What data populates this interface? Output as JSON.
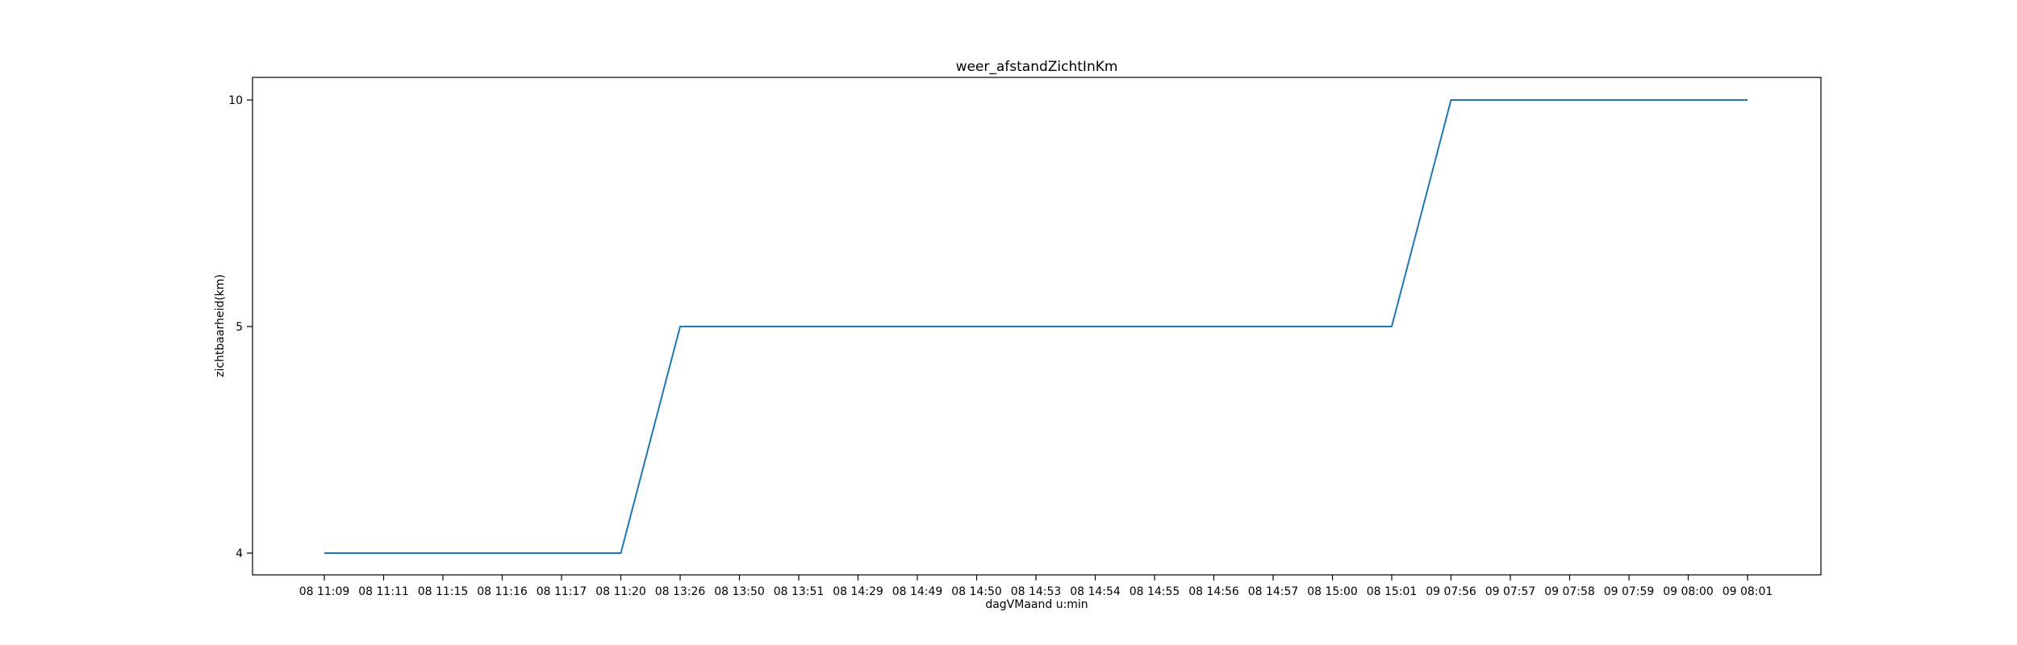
{
  "chart_data": {
    "type": "line",
    "title": "weer_afstandZichtInKm",
    "xlabel": "dagVMaand u:min",
    "ylabel": "zichtbaarheid(km)",
    "categories": [
      "08 11:09",
      "08 11:11",
      "08 11:15",
      "08 11:16",
      "08 11:17",
      "08 11:20",
      "08 13:26",
      "08 13:50",
      "08 13:51",
      "08 14:29",
      "08 14:49",
      "08 14:50",
      "08 14:53",
      "08 14:54",
      "08 14:55",
      "08 14:56",
      "08 14:57",
      "08 15:00",
      "08 15:01",
      "09 07:56",
      "09 07:57",
      "09 07:58",
      "09 07:59",
      "09 08:00",
      "09 08:01"
    ],
    "y_ticks": [
      "4",
      "5",
      "10"
    ],
    "series": [
      {
        "color": "#1f77b4",
        "values": [
          "4",
          "4",
          "4",
          "4",
          "4",
          "4",
          "5",
          "5",
          "5",
          "5",
          "5",
          "5",
          "5",
          "5",
          "5",
          "5",
          "5",
          "5",
          "5",
          "10",
          "10",
          "10",
          "10",
          "10",
          "10"
        ]
      }
    ],
    "grid": false,
    "legend": "none"
  }
}
